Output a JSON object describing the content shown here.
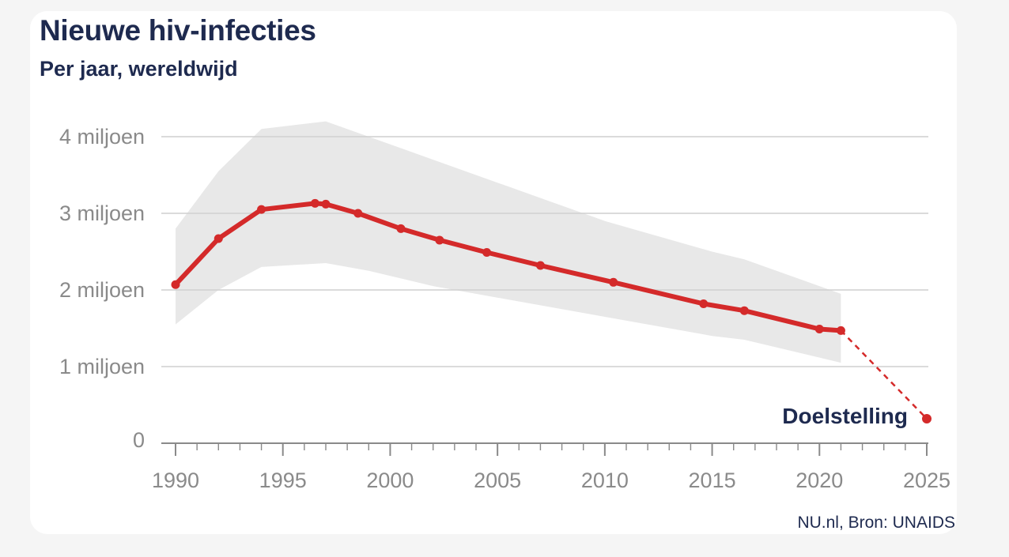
{
  "title": "Nieuwe hiv-infecties",
  "subtitle": "Per jaar, wereldwijd",
  "source": "NU.nl, Bron: UNAIDS",
  "colors": {
    "line": "#d42a2a",
    "band": "#e8e8e8",
    "grid": "#cfcfcf",
    "axis": "#8a8a8a",
    "title": "#1e2a4f"
  },
  "chart_data": {
    "type": "line",
    "title": "Nieuwe hiv-infecties",
    "subtitle": "Per jaar, wereldwijd",
    "xlabel": "",
    "ylabel": "",
    "xlim": [
      1990,
      2025
    ],
    "ylim": [
      0,
      4
    ],
    "x_ticks": [
      1990,
      1995,
      2000,
      2005,
      2010,
      2015,
      2020,
      2025
    ],
    "x_tick_labels": [
      "1990",
      "1995",
      "2000",
      "2005",
      "2010",
      "2015",
      "2020",
      "2025"
    ],
    "y_ticks": [
      0,
      1,
      2,
      3,
      4
    ],
    "y_tick_labels": [
      "0",
      "1 miljoen",
      "2 miljoen",
      "3 miljoen",
      "4 miljoen"
    ],
    "grid": true,
    "series": [
      {
        "name": "Nieuwe hiv-infecties (miljoen)",
        "x": [
          1990,
          1992,
          1994,
          1996.5,
          1997,
          1998.5,
          2000.5,
          2002.3,
          2004.5,
          2007,
          2010.4,
          2014.6,
          2016.5,
          2020,
          2021
        ],
        "values": [
          2.07,
          2.67,
          3.05,
          3.13,
          3.12,
          3.0,
          2.8,
          2.65,
          2.49,
          2.32,
          2.1,
          1.82,
          1.73,
          1.49,
          1.47
        ]
      }
    ],
    "uncertainty_band": {
      "x": [
        1990,
        1992,
        1994,
        1997,
        1999,
        2002,
        2005,
        2010,
        2015,
        2016.5,
        2021
      ],
      "upper": [
        2.8,
        3.55,
        4.1,
        4.2,
        4.0,
        3.7,
        3.4,
        2.9,
        2.5,
        2.4,
        1.95
      ],
      "lower": [
        1.55,
        2.0,
        2.3,
        2.35,
        2.25,
        2.05,
        1.9,
        1.65,
        1.4,
        1.35,
        1.05
      ]
    },
    "target": {
      "x": [
        2021,
        2025
      ],
      "values": [
        1.47,
        0.32
      ],
      "label": "Doelstelling",
      "style": "dashed"
    }
  }
}
